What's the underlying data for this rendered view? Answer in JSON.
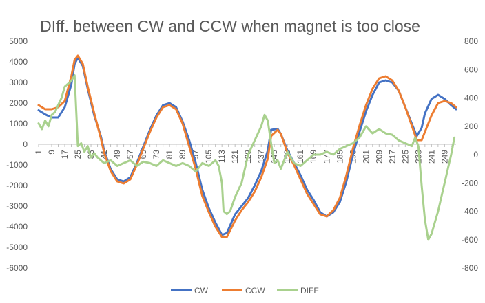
{
  "chart_data": {
    "type": "line",
    "title": "DIff. between CW and CCW when magnet is too close",
    "x_tick_labels": [
      "1",
      "9",
      "17",
      "25",
      "33",
      "41",
      "49",
      "57",
      "65",
      "73",
      "81",
      "89",
      "97",
      "105",
      "113",
      "121",
      "129",
      "137",
      "145",
      "153",
      "161",
      "169",
      "177",
      "185",
      "193",
      "201",
      "209",
      "217",
      "225",
      "233",
      "241",
      "249"
    ],
    "x_range": [
      1,
      256
    ],
    "y_left": {
      "range": [
        -6000,
        5000
      ],
      "step": 1000,
      "ticks": [
        "5000",
        "4000",
        "3000",
        "2000",
        "1000",
        "0",
        "-1000",
        "-2000",
        "-3000",
        "-4000",
        "-5000",
        "-6000"
      ]
    },
    "y_right": {
      "range": [
        -800,
        800
      ],
      "step": 200,
      "ticks": [
        "800",
        "600",
        "400",
        "200",
        "0",
        "-200",
        "-400",
        "-600",
        "-800"
      ]
    },
    "grid": false,
    "legend_position": "bottom",
    "colors": {
      "CW": "#4472C4",
      "CCW": "#ED7D31",
      "DIFF": "#A9D18E"
    },
    "series": [
      {
        "name": "CW",
        "axis": "left",
        "points": [
          [
            1,
            1650
          ],
          [
            5,
            1450
          ],
          [
            9,
            1300
          ],
          [
            13,
            1300
          ],
          [
            17,
            1800
          ],
          [
            21,
            2900
          ],
          [
            23,
            3900
          ],
          [
            25,
            4200
          ],
          [
            28,
            3800
          ],
          [
            31,
            2700
          ],
          [
            35,
            1400
          ],
          [
            39,
            400
          ],
          [
            41,
            -300
          ],
          [
            45,
            -1200
          ],
          [
            49,
            -1700
          ],
          [
            53,
            -1800
          ],
          [
            57,
            -1600
          ],
          [
            61,
            -900
          ],
          [
            65,
            -100
          ],
          [
            69,
            700
          ],
          [
            73,
            1400
          ],
          [
            77,
            1900
          ],
          [
            81,
            2000
          ],
          [
            85,
            1800
          ],
          [
            89,
            1100
          ],
          [
            93,
            200
          ],
          [
            97,
            -900
          ],
          [
            101,
            -2200
          ],
          [
            105,
            -3100
          ],
          [
            109,
            -3800
          ],
          [
            113,
            -4400
          ],
          [
            116,
            -4300
          ],
          [
            121,
            -3400
          ],
          [
            125,
            -3000
          ],
          [
            129,
            -2600
          ],
          [
            133,
            -2000
          ],
          [
            137,
            -1300
          ],
          [
            141,
            -300
          ],
          [
            143,
            700
          ],
          [
            147,
            750
          ],
          [
            149,
            500
          ],
          [
            153,
            -300
          ],
          [
            157,
            -900
          ],
          [
            161,
            -1500
          ],
          [
            165,
            -2200
          ],
          [
            169,
            -2700
          ],
          [
            173,
            -3300
          ],
          [
            177,
            -3500
          ],
          [
            181,
            -3300
          ],
          [
            185,
            -2800
          ],
          [
            189,
            -1800
          ],
          [
            193,
            -500
          ],
          [
            197,
            600
          ],
          [
            201,
            1600
          ],
          [
            205,
            2400
          ],
          [
            209,
            3000
          ],
          [
            213,
            3100
          ],
          [
            217,
            3000
          ],
          [
            221,
            2600
          ],
          [
            225,
            1800
          ],
          [
            229,
            1000
          ],
          [
            232,
            400
          ],
          [
            235,
            800
          ],
          [
            237,
            1500
          ],
          [
            241,
            2200
          ],
          [
            245,
            2400
          ],
          [
            249,
            2200
          ],
          [
            253,
            1900
          ],
          [
            256,
            1700
          ]
        ]
      },
      {
        "name": "CCW",
        "axis": "left",
        "points": [
          [
            1,
            1900
          ],
          [
            5,
            1700
          ],
          [
            9,
            1700
          ],
          [
            13,
            1800
          ],
          [
            17,
            2100
          ],
          [
            21,
            3300
          ],
          [
            23,
            4100
          ],
          [
            25,
            4300
          ],
          [
            28,
            3900
          ],
          [
            31,
            2800
          ],
          [
            35,
            1500
          ],
          [
            39,
            300
          ],
          [
            41,
            -400
          ],
          [
            45,
            -1300
          ],
          [
            49,
            -1800
          ],
          [
            53,
            -1900
          ],
          [
            57,
            -1700
          ],
          [
            61,
            -1000
          ],
          [
            65,
            -200
          ],
          [
            69,
            600
          ],
          [
            73,
            1300
          ],
          [
            77,
            1800
          ],
          [
            81,
            1900
          ],
          [
            85,
            1700
          ],
          [
            89,
            1000
          ],
          [
            93,
            -100
          ],
          [
            97,
            -1200
          ],
          [
            101,
            -2500
          ],
          [
            105,
            -3300
          ],
          [
            109,
            -4000
          ],
          [
            113,
            -4500
          ],
          [
            116,
            -4500
          ],
          [
            121,
            -3700
          ],
          [
            125,
            -3200
          ],
          [
            129,
            -2800
          ],
          [
            133,
            -2300
          ],
          [
            137,
            -1600
          ],
          [
            141,
            -700
          ],
          [
            143,
            400
          ],
          [
            147,
            700
          ],
          [
            149,
            500
          ],
          [
            153,
            -400
          ],
          [
            157,
            -1000
          ],
          [
            161,
            -1700
          ],
          [
            165,
            -2400
          ],
          [
            169,
            -2900
          ],
          [
            173,
            -3400
          ],
          [
            177,
            -3500
          ],
          [
            181,
            -3200
          ],
          [
            185,
            -2600
          ],
          [
            189,
            -1500
          ],
          [
            193,
            -200
          ],
          [
            197,
            900
          ],
          [
            201,
            1900
          ],
          [
            205,
            2700
          ],
          [
            209,
            3200
          ],
          [
            213,
            3300
          ],
          [
            217,
            3100
          ],
          [
            221,
            2600
          ],
          [
            225,
            1800
          ],
          [
            229,
            900
          ],
          [
            232,
            200
          ],
          [
            235,
            200
          ],
          [
            237,
            600
          ],
          [
            241,
            1400
          ],
          [
            245,
            2000
          ],
          [
            249,
            2100
          ],
          [
            253,
            2000
          ],
          [
            256,
            1800
          ]
        ]
      },
      {
        "name": "DIFF",
        "axis": "right",
        "points": [
          [
            1,
            220
          ],
          [
            3,
            180
          ],
          [
            5,
            240
          ],
          [
            7,
            200
          ],
          [
            9,
            280
          ],
          [
            11,
            300
          ],
          [
            13,
            350
          ],
          [
            15,
            400
          ],
          [
            17,
            480
          ],
          [
            19,
            500
          ],
          [
            21,
            520
          ],
          [
            23,
            560
          ],
          [
            24,
            300
          ],
          [
            25,
            60
          ],
          [
            27,
            80
          ],
          [
            29,
            20
          ],
          [
            31,
            60
          ],
          [
            33,
            -20
          ],
          [
            35,
            10
          ],
          [
            37,
            -20
          ],
          [
            39,
            -40
          ],
          [
            41,
            -60
          ],
          [
            45,
            -40
          ],
          [
            49,
            -80
          ],
          [
            53,
            -60
          ],
          [
            57,
            -40
          ],
          [
            61,
            -80
          ],
          [
            65,
            -50
          ],
          [
            69,
            -60
          ],
          [
            73,
            -80
          ],
          [
            77,
            -40
          ],
          [
            81,
            -60
          ],
          [
            85,
            -80
          ],
          [
            89,
            -60
          ],
          [
            93,
            -80
          ],
          [
            97,
            -120
          ],
          [
            101,
            -60
          ],
          [
            105,
            -80
          ],
          [
            109,
            -40
          ],
          [
            111,
            -80
          ],
          [
            113,
            -200
          ],
          [
            114,
            -400
          ],
          [
            116,
            -420
          ],
          [
            118,
            -400
          ],
          [
            121,
            -300
          ],
          [
            125,
            -200
          ],
          [
            129,
            0
          ],
          [
            133,
            100
          ],
          [
            137,
            200
          ],
          [
            139,
            280
          ],
          [
            141,
            240
          ],
          [
            143,
            80
          ],
          [
            145,
            -60
          ],
          [
            147,
            -40
          ],
          [
            149,
            -100
          ],
          [
            153,
            20
          ],
          [
            157,
            -60
          ],
          [
            161,
            -80
          ],
          [
            165,
            -40
          ],
          [
            169,
            0
          ],
          [
            173,
            0
          ],
          [
            177,
            20
          ],
          [
            181,
            0
          ],
          [
            185,
            40
          ],
          [
            189,
            60
          ],
          [
            193,
            80
          ],
          [
            197,
            120
          ],
          [
            201,
            200
          ],
          [
            205,
            150
          ],
          [
            209,
            180
          ],
          [
            213,
            150
          ],
          [
            217,
            140
          ],
          [
            221,
            100
          ],
          [
            225,
            80
          ],
          [
            229,
            60
          ],
          [
            231,
            120
          ],
          [
            233,
            60
          ],
          [
            235,
            -220
          ],
          [
            237,
            -460
          ],
          [
            239,
            -600
          ],
          [
            241,
            -560
          ],
          [
            243,
            -480
          ],
          [
            245,
            -400
          ],
          [
            247,
            -300
          ],
          [
            249,
            -200
          ],
          [
            251,
            -100
          ],
          [
            253,
            0
          ],
          [
            255,
            120
          ]
        ]
      }
    ]
  }
}
